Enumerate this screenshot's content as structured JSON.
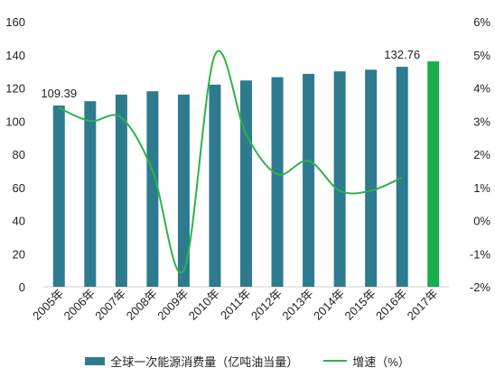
{
  "chart_data": {
    "type": "bar",
    "categories": [
      "2005年",
      "2006年",
      "2007年",
      "2008年",
      "2009年",
      "2010年",
      "2011年",
      "2012年",
      "2013年",
      "2014年",
      "2015年",
      "2016年",
      "2017年"
    ],
    "series": [
      {
        "name": "全球一次能源消费量（亿吨油当量）",
        "type": "bar",
        "axis": "left",
        "values": [
          109.39,
          112.0,
          116.0,
          118.0,
          116.0,
          122.0,
          124.5,
          126.5,
          128.5,
          130.0,
          131.0,
          132.76,
          136.0
        ],
        "color": "#2e7b8f",
        "highlight_index": 12,
        "highlight_color": "#1aab4b"
      },
      {
        "name": "增速（%）",
        "type": "line",
        "axis": "right",
        "values": [
          3.4,
          3.0,
          3.1,
          1.5,
          -1.5,
          5.0,
          2.6,
          1.4,
          1.8,
          0.9,
          0.9,
          1.3,
          null
        ],
        "color": "#2db34a"
      }
    ],
    "left_axis": {
      "min": 0,
      "max": 160,
      "ticks": [
        0,
        20,
        40,
        60,
        80,
        100,
        120,
        140,
        160
      ]
    },
    "right_axis": {
      "min": -2,
      "max": 6,
      "ticks": [
        "-2%",
        "-1%",
        "0%",
        "1%",
        "2%",
        "3%",
        "4%",
        "5%",
        "6%"
      ]
    },
    "data_labels": [
      {
        "index": 0,
        "text": "109.39"
      },
      {
        "index": 11,
        "text": "132.76"
      }
    ],
    "legend_position": "bottom",
    "grid": false
  }
}
